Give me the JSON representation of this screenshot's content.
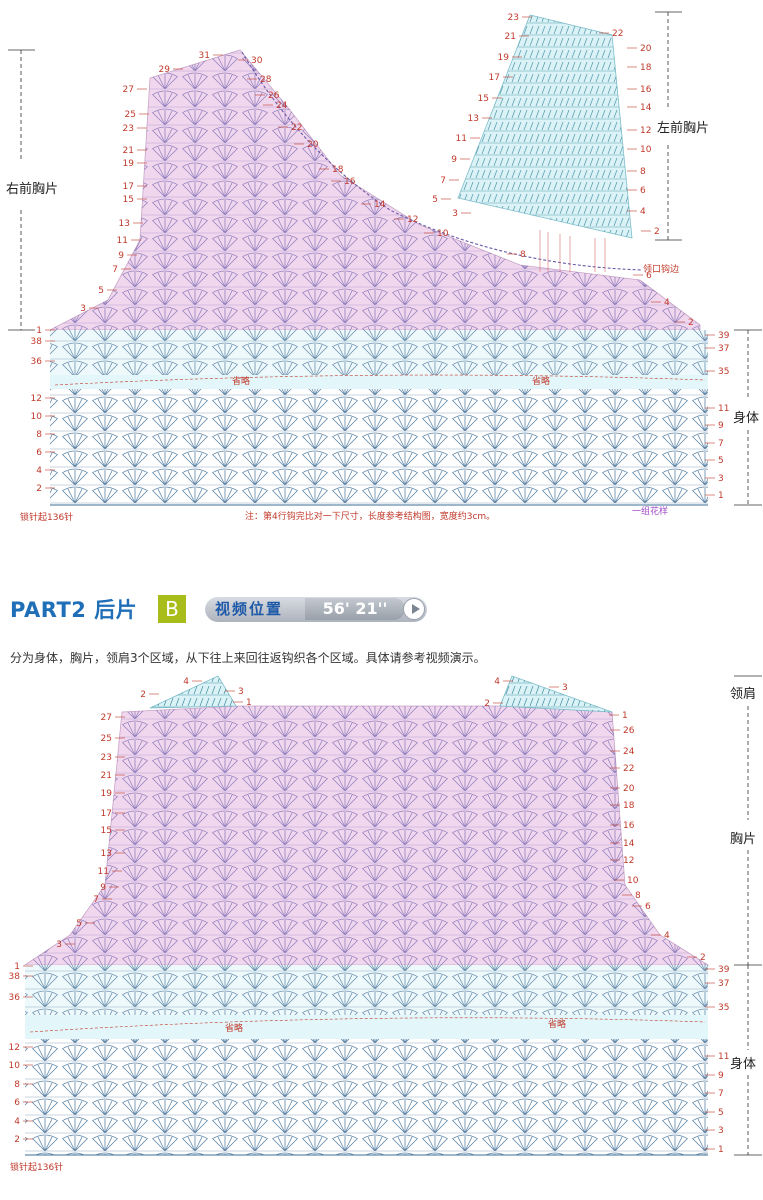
{
  "front": {
    "right_label": "右前胸片",
    "left_label": "左前胸片",
    "body_label": "身体",
    "omit_left": "省略",
    "omit_right": "省略",
    "start_label": "锁针起136针",
    "note": "注：第4行钩完比对一下尺寸，长度参考结构图，宽度约3cm。",
    "pattern_label": "一组花样",
    "neck_label": "领口钩边",
    "rows_right_piece_left": [
      "31",
      "29",
      "27",
      "25",
      "23",
      "21",
      "19",
      "17",
      "15",
      "13",
      "11",
      "9",
      "7",
      "5",
      "3",
      "1"
    ],
    "rows_right_piece_edge": [
      "30",
      "28",
      "26",
      "24",
      "22",
      "20",
      "18",
      "16",
      "14",
      "12",
      "10",
      "8",
      "6",
      "4",
      "2"
    ],
    "rows_left_piece_left": [
      "23",
      "21",
      "19",
      "17",
      "15",
      "13",
      "11",
      "9",
      "7",
      "5",
      "3"
    ],
    "rows_left_piece_right": [
      "22",
      "20",
      "18",
      "16",
      "14",
      "12",
      "10",
      "8",
      "6",
      "4",
      "2"
    ],
    "rows_yoke_left": [
      "38",
      "36"
    ],
    "rows_yoke_right": [
      "39",
      "37",
      "35"
    ],
    "rows_body_left": [
      "12",
      "10",
      "8",
      "6",
      "4",
      "2"
    ],
    "rows_body_right": [
      "11",
      "9",
      "7",
      "5",
      "3",
      "1"
    ]
  },
  "header": {
    "part_title": "PART2 后片",
    "part_letter": "B",
    "video_label": "视频位置",
    "video_time": "56' 21''",
    "description": "分为身体，胸片，领肩3个区域，从下往上来回往返钩织各个区域。具体请参考视频演示。"
  },
  "back": {
    "shoulder_label": "领肩",
    "chest_label": "胸片",
    "body_label": "身体",
    "omit_left": "省略",
    "omit_right": "省略",
    "start_label": "锁针起136针",
    "rows_shoulder_left_a": [
      "4",
      "2"
    ],
    "rows_shoulder_left_b": [
      "3",
      "1"
    ],
    "rows_shoulder_right_a": [
      "4",
      "2"
    ],
    "rows_shoulder_right_b": [
      "3",
      "1"
    ],
    "rows_chest_left": [
      "27",
      "25",
      "23",
      "21",
      "19",
      "17",
      "15",
      "13",
      "11",
      "9",
      "7",
      "5",
      "3",
      "1"
    ],
    "rows_chest_right": [
      "26",
      "24",
      "22",
      "20",
      "18",
      "16",
      "14",
      "12",
      "10",
      "8",
      "6",
      "4",
      "2"
    ],
    "rows_yoke_left": [
      "38",
      "36"
    ],
    "rows_yoke_right": [
      "39",
      "37",
      "35"
    ],
    "rows_body_left": [
      "12",
      "10",
      "8",
      "6",
      "4",
      "2"
    ],
    "rows_body_right": [
      "11",
      "9",
      "7",
      "5",
      "3",
      "1"
    ]
  },
  "colors": {
    "pink": "#f1d7ee",
    "cyan": "#dbf3f7",
    "stitch_blue": "#5c84a6",
    "stitch_purple": "#7b6db3",
    "row_red": "#c0392b",
    "title_blue": "#1f6fb8",
    "badge_green": "#a8bd1a"
  }
}
